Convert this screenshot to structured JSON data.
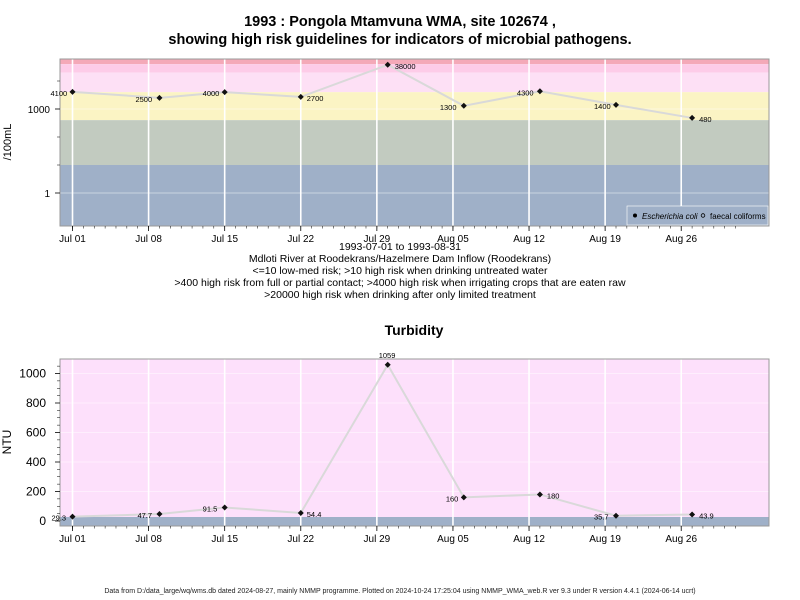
{
  "header": {
    "title_line1": "1993 : Pongola Mtamvuna WMA, site 102674 ,",
    "title_line2": "showing high risk guidelines for indicators of microbial pathogens."
  },
  "subtitle_lines": [
    "1993-07-01 to 1993-08-31",
    "Mdloti River at Roodekrans/Hazelmere Dam Inflow (Roodekrans)",
    "<=10 low-med risk; >10 high risk when drinking untreated water",
    ">400 high risk from full or partial contact; >4000 high risk when irrigating crops that are eaten raw",
    ">20000 high risk when drinking after only limited treatment"
  ],
  "footer": "Data from D:/data_large/wq/wms.db dated 2024-08-27, mainly NMMP programme. Plotted on 2024-10-24 17:25:04 using NMMP_WMA_web.R ver 9.3 under R version 4.4.1 (2024-06-14 ucrt)",
  "colors": {
    "band_red": "#f4a9b8",
    "band_pink": "#fdcce8",
    "band_lightpink": "#fde0f5",
    "band_yellow": "#fbf4c4",
    "band_greygreen": "#c2cbc0",
    "band_blue": "#9fb0c8",
    "turb_bg": "#fde0fb",
    "line": "#d9d9d9",
    "grid": "#ffffff"
  },
  "chart_data": [
    {
      "type": "line",
      "ylabel": "/100mL",
      "y_scale": "log",
      "y_ticks": [
        "1",
        "1000"
      ],
      "x_ticks": [
        "Jul 01",
        "Jul 08",
        "Jul 15",
        "Jul 22",
        "Jul 29",
        "Aug 05",
        "Aug 12",
        "Aug 19",
        "Aug 26"
      ],
      "x_tick_days": [
        0,
        7,
        14,
        21,
        28,
        35,
        42,
        49,
        56
      ],
      "legend": [
        "Escherichia coli",
        "faecal coliforms"
      ],
      "legend_position": "bottom-right",
      "risk_bands": [
        10,
        400,
        4000,
        20000
      ],
      "series": [
        {
          "name": "Escherichia coli",
          "x": [
            "1993-07-01",
            "1993-07-09",
            "1993-07-15",
            "1993-07-22",
            "1993-07-30",
            "1993-08-06",
            "1993-08-13",
            "1993-08-20",
            "1993-08-27"
          ],
          "values": [
            4100,
            2500,
            4000,
            2700,
            38000,
            1300,
            4300,
            1400,
            480
          ],
          "labels": [
            "4100",
            "2500",
            "4000",
            "2700",
            "38000",
            "1300",
            "4300",
            "1400",
            "480"
          ]
        }
      ]
    },
    {
      "type": "line",
      "title": "Turbidity",
      "ylabel": "NTU",
      "y_ticks": [
        "0",
        "200",
        "400",
        "600",
        "800",
        "1000"
      ],
      "x_ticks": [
        "Jul 01",
        "Jul 08",
        "Jul 15",
        "Jul 22",
        "Jul 29",
        "Aug 05",
        "Aug 12",
        "Aug 19",
        "Aug 26"
      ],
      "series": [
        {
          "x": [
            "1993-07-01",
            "1993-07-09",
            "1993-07-15",
            "1993-07-22",
            "1993-07-30",
            "1993-08-06",
            "1993-08-13",
            "1993-08-20",
            "1993-08-27"
          ],
          "values": [
            29.3,
            47.7,
            91.5,
            54.4,
            1059,
            160,
            180,
            35.7,
            43.9
          ],
          "labels": [
            "29.3",
            "47.7",
            "91.5",
            "54.4",
            "1059",
            "160",
            "180",
            "35.7",
            "43.9"
          ]
        }
      ]
    }
  ]
}
